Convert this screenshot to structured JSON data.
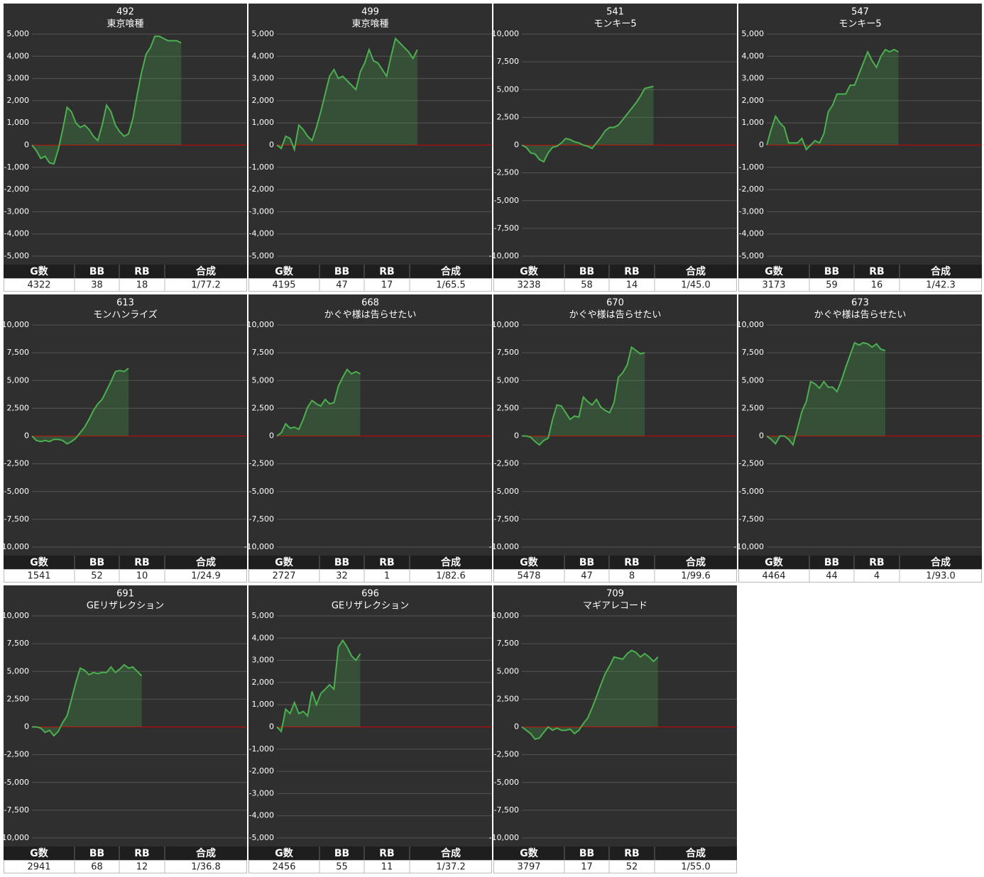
{
  "table_header": [
    "G数",
    "BB",
    "RB",
    "合成"
  ],
  "chart_data": [
    {
      "type": "line",
      "title": "492",
      "subtitle": "東京喰種",
      "color": "#4caf50",
      "values": [
        0,
        -250,
        -600,
        -500,
        -800,
        -850,
        -200,
        700,
        1700,
        1500,
        1000,
        800,
        900,
        700,
        400,
        200,
        900,
        1800,
        1500,
        900,
        600,
        400,
        500,
        1200,
        2300,
        3300,
        4100,
        4400,
        4900,
        4900,
        4800,
        4700,
        4700,
        4700,
        4600
      ],
      "ylim": [
        -5000,
        5000
      ],
      "yticks": [
        {
          "value": -5000,
          "label": "-5,000"
        },
        {
          "value": -4000,
          "label": "-4,000"
        },
        {
          "value": -3000,
          "label": "-3,000"
        },
        {
          "value": -2000,
          "label": "-2,000"
        },
        {
          "value": -1000,
          "label": "-1,000"
        },
        0,
        {
          "value": 1000,
          "label": "1,000"
        },
        {
          "value": 2000,
          "label": "2,000"
        },
        {
          "value": 3000,
          "label": "3,000"
        },
        {
          "value": 4000,
          "label": "4,000"
        },
        {
          "value": 5000,
          "label": "5,000"
        }
      ],
      "stats": [
        4322,
        38,
        18,
        "1/77.2"
      ]
    },
    {
      "type": "line",
      "title": "499",
      "subtitle": "東京喰種",
      "color": "#4caf50",
      "values": [
        0,
        -150,
        400,
        300,
        -200,
        900,
        700,
        400,
        200,
        800,
        1500,
        2300,
        3100,
        3400,
        3000,
        3100,
        2900,
        2700,
        2500,
        3300,
        3700,
        4300,
        3800,
        3700,
        3400,
        3100,
        4000,
        4800,
        4600,
        4400,
        4200,
        3900,
        4300
      ],
      "ylim": [
        -5000,
        5000
      ],
      "yticks": [
        {
          "value": -5000,
          "label": "-5,000"
        },
        {
          "value": -4000,
          "label": "-4,000"
        },
        {
          "value": -3000,
          "label": "-3,000"
        },
        {
          "value": -2000,
          "label": "-2,000"
        },
        {
          "value": -1000,
          "label": "-1,000"
        },
        0,
        {
          "value": 1000,
          "label": "1,000"
        },
        {
          "value": 2000,
          "label": "2,000"
        },
        {
          "value": 3000,
          "label": "3,000"
        },
        {
          "value": 4000,
          "label": "4,000"
        },
        {
          "value": 5000,
          "label": "5,000"
        }
      ],
      "stats": [
        4195,
        47,
        17,
        "1/65.5"
      ]
    },
    {
      "type": "line",
      "title": "541",
      "subtitle": "モンキー5",
      "color": "#4caf50",
      "values": [
        0,
        -200,
        -700,
        -800,
        -1300,
        -1500,
        -700,
        -200,
        -100,
        200,
        600,
        500,
        300,
        200,
        0,
        -100,
        -300,
        200,
        700,
        1300,
        1600,
        1600,
        1800,
        2300,
        2800,
        3300,
        3800,
        4400,
        5100,
        5200,
        5300
      ],
      "ylim": [
        -10000,
        10000
      ],
      "yticks": [
        {
          "value": -10000,
          "label": "-10,000"
        },
        {
          "value": -7500,
          "label": "-7,500"
        },
        {
          "value": -5000,
          "label": "-5,000"
        },
        {
          "value": -2500,
          "label": "-2,500"
        },
        0,
        {
          "value": 2500,
          "label": "2,500"
        },
        {
          "value": 5000,
          "label": "5,000"
        },
        {
          "value": 7500,
          "label": "7,500"
        },
        {
          "value": 10000,
          "label": "10,000"
        }
      ],
      "stats": [
        3238,
        58,
        14,
        "1/45.0"
      ]
    },
    {
      "type": "line",
      "title": "547",
      "subtitle": "モンキー5",
      "color": "#4caf50",
      "values": [
        0,
        700,
        1300,
        1000,
        800,
        100,
        100,
        100,
        300,
        -200,
        0,
        200,
        100,
        500,
        1500,
        1800,
        2300,
        2300,
        2300,
        2700,
        2700,
        3200,
        3700,
        4200,
        3800,
        3500,
        4000,
        4300,
        4200,
        4300,
        4200
      ],
      "ylim": [
        -5000,
        5000
      ],
      "yticks": [
        {
          "value": -5000,
          "label": "-5,000"
        },
        {
          "value": -4000,
          "label": "-4,000"
        },
        {
          "value": -3000,
          "label": "-3,000"
        },
        {
          "value": -2000,
          "label": "-2,000"
        },
        {
          "value": -1000,
          "label": "-1,000"
        },
        0,
        {
          "value": 1000,
          "label": "1,000"
        },
        {
          "value": 2000,
          "label": "2,000"
        },
        {
          "value": 3000,
          "label": "3,000"
        },
        {
          "value": 4000,
          "label": "4,000"
        },
        {
          "value": 5000,
          "label": "5,000"
        }
      ],
      "stats": [
        3173,
        59,
        16,
        "1/42.3"
      ]
    },
    {
      "type": "line",
      "title": "613",
      "subtitle": "モンハンライズ",
      "color": "#4caf50",
      "values": [
        0,
        -400,
        -500,
        -400,
        -500,
        -300,
        -300,
        -400,
        -700,
        -500,
        -200,
        300,
        800,
        1500,
        2300,
        2900,
        3300,
        4100,
        4900,
        5800,
        5900,
        5800,
        6100
      ],
      "ylim": [
        -10000,
        10000
      ],
      "yticks": [
        {
          "value": -10000,
          "label": "-10,000"
        },
        {
          "value": -7500,
          "label": "-7,500"
        },
        {
          "value": -5000,
          "label": "-5,000"
        },
        {
          "value": -2500,
          "label": "-2,500"
        },
        0,
        {
          "value": 2500,
          "label": "2,500"
        },
        {
          "value": 5000,
          "label": "5,000"
        },
        {
          "value": 7500,
          "label": "7,500"
        },
        {
          "value": 10000,
          "label": "10,000"
        }
      ],
      "stats": [
        1541,
        52,
        10,
        "1/24.9"
      ]
    },
    {
      "type": "line",
      "title": "668",
      "subtitle": "かぐや様は告らせたい",
      "color": "#4caf50",
      "values": [
        0,
        300,
        1100,
        700,
        800,
        600,
        1500,
        2600,
        3200,
        2900,
        2700,
        3300,
        2900,
        3000,
        4500,
        5300,
        6000,
        5600,
        5800,
        5600
      ],
      "ylim": [
        -10000,
        10000
      ],
      "yticks": [
        {
          "value": -10000,
          "label": "-10,000"
        },
        {
          "value": -7500,
          "label": "-7,500"
        },
        {
          "value": -5000,
          "label": "-5,000"
        },
        {
          "value": -2500,
          "label": "-2,500"
        },
        0,
        {
          "value": 2500,
          "label": "2,500"
        },
        {
          "value": 5000,
          "label": "5,000"
        },
        {
          "value": 7500,
          "label": "7,500"
        },
        {
          "value": 10000,
          "label": "10,000"
        }
      ],
      "stats": [
        2727,
        32,
        1,
        "1/82.6"
      ]
    },
    {
      "type": "line",
      "title": "670",
      "subtitle": "かぐや様は告らせたい",
      "color": "#4caf50",
      "values": [
        0,
        0,
        -100,
        -500,
        -800,
        -400,
        -200,
        1500,
        2800,
        2700,
        2100,
        1500,
        1800,
        1700,
        3500,
        3100,
        2800,
        3300,
        2600,
        2300,
        2100,
        3000,
        5300,
        5700,
        6400,
        8000,
        7700,
        7400,
        7500
      ],
      "ylim": [
        -10000,
        10000
      ],
      "yticks": [
        {
          "value": -10000,
          "label": "-10,000"
        },
        {
          "value": -7500,
          "label": "-7,500"
        },
        {
          "value": -5000,
          "label": "-5,000"
        },
        {
          "value": -2500,
          "label": "-2,500"
        },
        0,
        {
          "value": 2500,
          "label": "2,500"
        },
        {
          "value": 5000,
          "label": "5,000"
        },
        {
          "value": 7500,
          "label": "7,500"
        },
        {
          "value": 10000,
          "label": "10,000"
        }
      ],
      "stats": [
        5478,
        47,
        8,
        "1/99.6"
      ]
    },
    {
      "type": "line",
      "title": "673",
      "subtitle": "かぐや様は告らせたい",
      "color": "#4caf50",
      "values": [
        0,
        -300,
        -700,
        0,
        0,
        -300,
        -800,
        700,
        2200,
        3100,
        4900,
        4700,
        4300,
        4900,
        4400,
        4400,
        4000,
        5000,
        6200,
        7300,
        8400,
        8200,
        8400,
        8300,
        8000,
        8300,
        7800,
        7700
      ],
      "ylim": [
        -10000,
        10000
      ],
      "yticks": [
        {
          "value": -10000,
          "label": "-10,000"
        },
        {
          "value": -7500,
          "label": "-7,500"
        },
        {
          "value": -5000,
          "label": "-5,000"
        },
        {
          "value": -2500,
          "label": "-2,500"
        },
        0,
        {
          "value": 2500,
          "label": "2,500"
        },
        {
          "value": 5000,
          "label": "5,000"
        },
        {
          "value": 7500,
          "label": "7,500"
        },
        {
          "value": 10000,
          "label": "10,000"
        }
      ],
      "stats": [
        4464,
        44,
        4,
        "1/93.0"
      ]
    },
    {
      "type": "line",
      "title": "691",
      "subtitle": "GEリザレクション",
      "color": "#4caf50",
      "values": [
        0,
        0,
        -100,
        -500,
        -300,
        -800,
        -400,
        400,
        1000,
        2500,
        4000,
        5300,
        5100,
        4700,
        4900,
        4800,
        4900,
        4900,
        5400,
        4900,
        5200,
        5600,
        5300,
        5400,
        5000,
        4600
      ],
      "ylim": [
        -10000,
        10000
      ],
      "yticks": [
        {
          "value": -10000,
          "label": "-10,000"
        },
        {
          "value": -7500,
          "label": "-7,500"
        },
        {
          "value": -5000,
          "label": "-5,000"
        },
        {
          "value": -2500,
          "label": "-2,500"
        },
        0,
        {
          "value": 2500,
          "label": "2,500"
        },
        {
          "value": 5000,
          "label": "5,000"
        },
        {
          "value": 7500,
          "label": "7,500"
        },
        {
          "value": 10000,
          "label": "10,000"
        }
      ],
      "stats": [
        2941,
        68,
        12,
        "1/36.8"
      ]
    },
    {
      "type": "line",
      "title": "696",
      "subtitle": "GEリザレクション",
      "color": "#4caf50",
      "values": [
        0,
        -200,
        800,
        600,
        1100,
        600,
        700,
        500,
        1600,
        1000,
        1500,
        1700,
        1900,
        1700,
        3600,
        3900,
        3600,
        3200,
        3000,
        3300
      ],
      "ylim": [
        -5000,
        5000
      ],
      "yticks": [
        {
          "value": -5000,
          "label": "-5,000"
        },
        {
          "value": -4000,
          "label": "-4,000"
        },
        {
          "value": -3000,
          "label": "-3,000"
        },
        {
          "value": -2000,
          "label": "-2,000"
        },
        {
          "value": -1000,
          "label": "-1,000"
        },
        0,
        {
          "value": 1000,
          "label": "1,000"
        },
        {
          "value": 2000,
          "label": "2,000"
        },
        {
          "value": 3000,
          "label": "3,000"
        },
        {
          "value": 4000,
          "label": "4,000"
        },
        {
          "value": 5000,
          "label": "5,000"
        }
      ],
      "stats": [
        2456,
        55,
        11,
        "1/37.2"
      ]
    },
    {
      "type": "line",
      "title": "709",
      "subtitle": "マギアレコード",
      "color": "#4caf50",
      "values": [
        0,
        -300,
        -600,
        -1100,
        -1000,
        -500,
        0,
        -300,
        -100,
        -300,
        -300,
        -200,
        -600,
        -300,
        300,
        800,
        1700,
        2700,
        3800,
        4800,
        5500,
        6300,
        6200,
        6100,
        6600,
        6900,
        6700,
        6300,
        6600,
        6300,
        5900,
        6300
      ],
      "ylim": [
        -10000,
        10000
      ],
      "yticks": [
        {
          "value": -10000,
          "label": "-10,000"
        },
        {
          "value": -7500,
          "label": "-7,500"
        },
        {
          "value": -5000,
          "label": "-5,000"
        },
        {
          "value": -2500,
          "label": "-2,500"
        },
        0,
        {
          "value": 2500,
          "label": "2,500"
        },
        {
          "value": 5000,
          "label": "5,000"
        },
        {
          "value": 7500,
          "label": "7,500"
        },
        {
          "value": 10000,
          "label": "10,000"
        }
      ],
      "stats": [
        3797,
        17,
        52,
        "1/55.0"
      ]
    }
  ]
}
